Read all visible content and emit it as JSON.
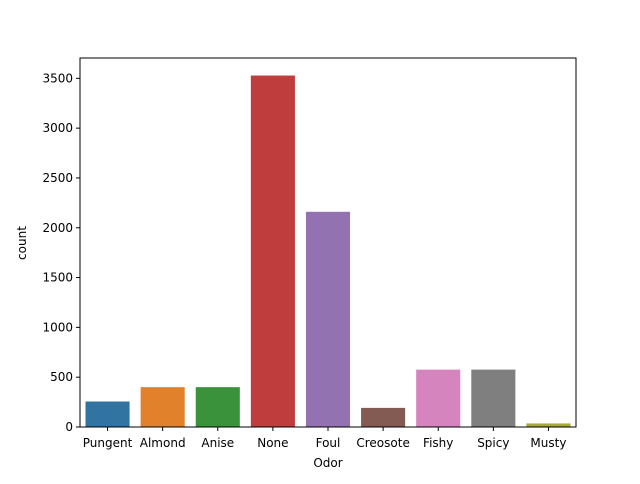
{
  "chart_data": {
    "type": "bar",
    "title": "",
    "xlabel": "Odor",
    "ylabel": "count",
    "categories": [
      "Pungent",
      "Almond",
      "Anise",
      "None",
      "Foul",
      "Creosote",
      "Fishy",
      "Spicy",
      "Musty"
    ],
    "values": [
      256,
      400,
      400,
      3528,
      2160,
      192,
      576,
      576,
      36
    ],
    "colors": [
      "#3274a1",
      "#e1812c",
      "#3a923a",
      "#c03d3e",
      "#9372b2",
      "#845b53",
      "#d684bd",
      "#7f7f7f",
      "#a9aa35"
    ],
    "ylim": [
      0,
      3704
    ],
    "yticks": [
      0,
      500,
      1000,
      1500,
      2000,
      2500,
      3000,
      3500
    ],
    "grid": false,
    "legend": "none"
  }
}
